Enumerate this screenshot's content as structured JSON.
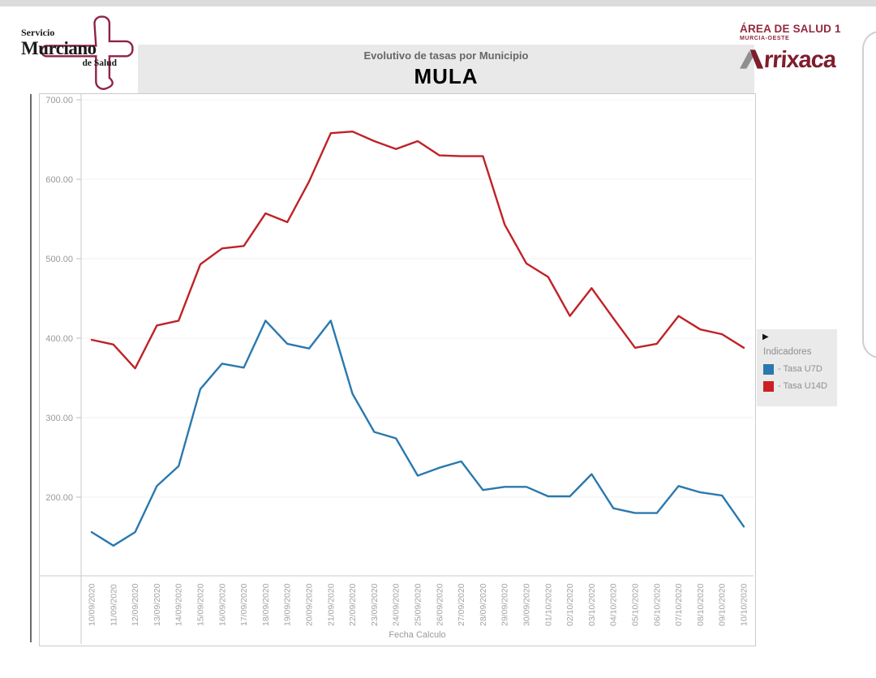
{
  "header": {
    "sms_logo": {
      "line1": "Servicio",
      "line2": "Murciano",
      "line3": "de Salud"
    },
    "title": "Evolutivo de tasas por Municipio",
    "municipality": "MULA",
    "area": {
      "line1": "ÁREA DE SALUD 1",
      "line2": "MURCIA-OESTE",
      "brand": "rrixaca"
    }
  },
  "legend": {
    "collapse_arrow": "▶",
    "title": "Indicadores",
    "items": [
      {
        "label": "- Tasa U7D",
        "color": "#2a79ae"
      },
      {
        "label": "- Tasa U14D",
        "color": "#cc1f24"
      }
    ]
  },
  "chart_data": {
    "type": "line",
    "title": "Evolutivo de tasas por Municipio",
    "subtitle": "MULA",
    "xlabel": "Fecha Calculo",
    "ylabel": "",
    "grid": true,
    "legend_position": "right",
    "ylim": [
      100,
      712
    ],
    "y_ticks": [
      700,
      600,
      500,
      400,
      300,
      200
    ],
    "y_tick_format": "0.00",
    "categories": [
      "10/09/2020",
      "11/09/2020",
      "12/09/2020",
      "13/09/2020",
      "14/09/2020",
      "15/09/2020",
      "16/09/2020",
      "17/09/2020",
      "18/09/2020",
      "19/09/2020",
      "20/09/2020",
      "21/09/2020",
      "22/09/2020",
      "23/09/2020",
      "24/09/2020",
      "25/09/2020",
      "26/09/2020",
      "27/09/2020",
      "28/09/2020",
      "29/09/2020",
      "30/09/2020",
      "01/10/2020",
      "02/10/2020",
      "03/10/2020",
      "04/10/2020",
      "05/10/2020",
      "06/10/2020",
      "07/10/2020",
      "08/10/2020",
      "09/10/2020",
      "10/10/2020"
    ],
    "series": [
      {
        "name": "Tasa U7D",
        "color": "#2a79ae",
        "values": [
          156,
          139,
          156,
          214,
          239,
          336,
          368,
          363,
          422,
          393,
          387,
          422,
          330,
          282,
          274,
          227,
          237,
          245,
          209,
          213,
          213,
          201,
          201,
          229,
          186,
          180,
          180,
          214,
          206,
          202,
          163
        ]
      },
      {
        "name": "Tasa U14D",
        "color": "#bf2228",
        "values": [
          398,
          392,
          362,
          416,
          422,
          493,
          513,
          516,
          557,
          546,
          597,
          658,
          660,
          648,
          638,
          648,
          630,
          629,
          629,
          543,
          494,
          477,
          428,
          463,
          425,
          388,
          393,
          428,
          411,
          405,
          388
        ]
      }
    ]
  }
}
